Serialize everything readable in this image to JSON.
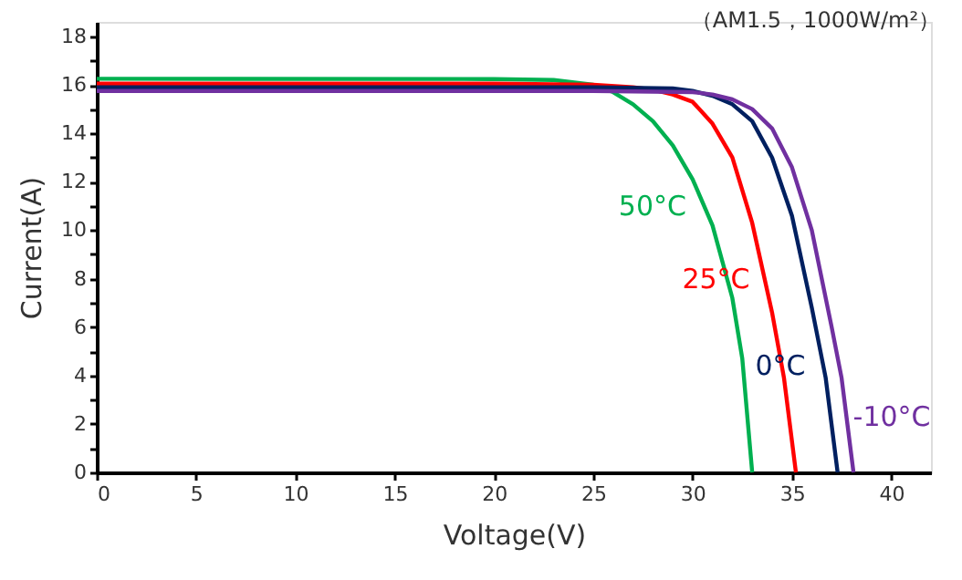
{
  "chart_data": {
    "type": "line",
    "xlabel": "Voltage(V)",
    "ylabel": "Current(A)",
    "xlim": [
      0,
      42
    ],
    "ylim": [
      0,
      18.6
    ],
    "xticks": [
      0,
      5,
      10,
      15,
      20,
      25,
      30,
      35,
      40
    ],
    "yticks": [
      0,
      {
        "value": 1,
        "label": null
      },
      2,
      {
        "value": 3,
        "label": null
      },
      4,
      {
        "value": 5,
        "label": null
      },
      6,
      {
        "value": 7,
        "label": null
      },
      8,
      {
        "value": 9,
        "label": null
      },
      10,
      {
        "value": 11,
        "label": null
      },
      12,
      {
        "value": 13,
        "label": null
      },
      14,
      {
        "value": 15,
        "label": null
      },
      16,
      {
        "value": 17,
        "label": null
      },
      18
    ],
    "grid": false,
    "marker": "none",
    "line_style": "solid",
    "series": [
      {
        "color": "#00b050",
        "x": [
          0,
          20,
          23,
          25,
          26,
          27,
          28,
          29,
          30,
          31,
          32,
          32.5,
          33.0
        ],
        "values": [
          16.25,
          16.24,
          16.2,
          16.0,
          15.7,
          15.2,
          14.5,
          13.5,
          12.1,
          10.2,
          7.2,
          4.7,
          0
        ]
      },
      {
        "color": "#ff0000",
        "x": [
          0,
          20,
          25,
          27,
          28,
          29,
          30,
          31,
          32,
          33,
          34,
          34.6,
          35.2
        ],
        "values": [
          16.05,
          16.05,
          16.0,
          15.9,
          15.8,
          15.6,
          15.3,
          14.4,
          13.0,
          10.3,
          6.6,
          3.9,
          0
        ]
      },
      {
        "color": "#002060",
        "x": [
          0,
          25,
          29,
          30,
          31,
          32,
          33,
          34,
          35,
          36,
          36.7,
          37.3
        ],
        "values": [
          15.9,
          15.9,
          15.85,
          15.75,
          15.55,
          15.2,
          14.5,
          13.0,
          10.6,
          6.8,
          3.9,
          0
        ]
      },
      {
        "color": "#7030a0",
        "x": [
          0,
          25,
          30,
          31,
          32,
          33,
          34,
          35,
          36,
          37,
          37.5,
          38.1
        ],
        "values": [
          15.75,
          15.75,
          15.7,
          15.6,
          15.4,
          15.0,
          14.2,
          12.6,
          10.0,
          6.0,
          3.9,
          0
        ]
      }
    ],
    "annotations": [
      {
        "text": "50°C",
        "x": 30.6,
        "y": 11.0
      },
      {
        "text": "25°C",
        "x": 33.8,
        "y": 8.0
      },
      {
        "text": "0°C",
        "x": 36.6,
        "y": 4.4
      },
      {
        "text": "-10°C",
        "x": 37.8,
        "y": 2.3
      },
      "（AM1.5，1000W/m²）"
    ]
  }
}
